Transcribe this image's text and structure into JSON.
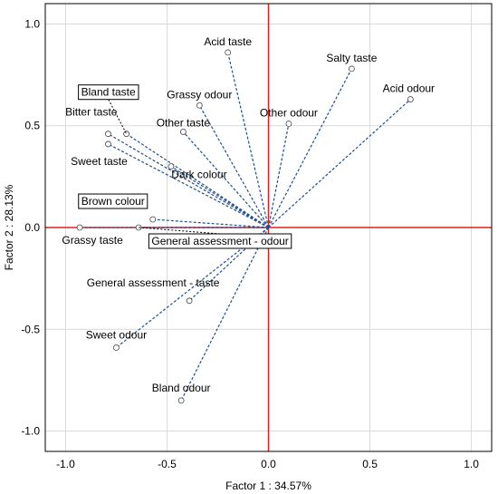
{
  "chart_data": {
    "type": "scatter",
    "xlabel": "Factor 1 : 34.57%",
    "ylabel": "Factor 2 : 28.13%",
    "xlim": [
      -1.1,
      1.1
    ],
    "ylim": [
      -1.1,
      1.1
    ],
    "x_ticks": [
      "-1.0",
      "-0.5",
      "0.0",
      "0.5",
      "1.0"
    ],
    "y_ticks": [
      "-1.0",
      "-0.5",
      "0.0",
      "0.5",
      "1.0"
    ],
    "grid": true,
    "reference_lines": {
      "x": 0,
      "y": 0,
      "color": "#e02020"
    },
    "vector_color": "#1f4f8f",
    "points": [
      {
        "label": "Acid taste",
        "x": -0.2,
        "y": 0.86,
        "boxed": false
      },
      {
        "label": "Salty taste",
        "x": 0.41,
        "y": 0.78,
        "boxed": false
      },
      {
        "label": "Acid odour",
        "x": 0.7,
        "y": 0.63,
        "boxed": false
      },
      {
        "label": "Grassy odour",
        "x": -0.34,
        "y": 0.6,
        "boxed": false
      },
      {
        "label": "Other odour",
        "x": 0.1,
        "y": 0.51,
        "boxed": false
      },
      {
        "label": "Other taste",
        "x": -0.42,
        "y": 0.47,
        "boxed": false
      },
      {
        "label": "Bland taste",
        "x": -0.7,
        "y": 0.46,
        "boxed": true
      },
      {
        "label": "Bitter taste",
        "x": -0.79,
        "y": 0.46,
        "boxed": false
      },
      {
        "label": "Sweet taste",
        "x": -0.79,
        "y": 0.41,
        "boxed": false
      },
      {
        "label": "Dark colour",
        "x": -0.48,
        "y": 0.3,
        "boxed": false
      },
      {
        "label": "Brown colour",
        "x": -0.57,
        "y": 0.04,
        "boxed": true
      },
      {
        "label": "Grassy taste",
        "x": -0.93,
        "y": 0.0,
        "boxed": false
      },
      {
        "label": "General assessment - odour",
        "x": -0.64,
        "y": 0.0,
        "boxed": true
      },
      {
        "label": "General assessment - taste",
        "x": -0.39,
        "y": -0.36,
        "boxed": false
      },
      {
        "label": "Sweet odour",
        "x": -0.75,
        "y": -0.59,
        "boxed": false
      },
      {
        "label": "Bland odour",
        "x": -0.43,
        "y": -0.85,
        "boxed": false
      }
    ]
  }
}
